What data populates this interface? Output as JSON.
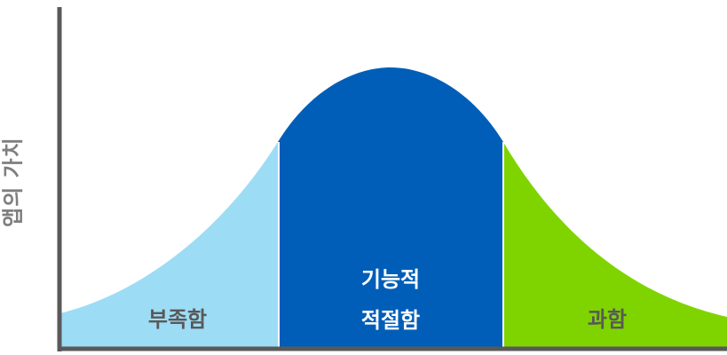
{
  "y_axis_label": "앱의 가치",
  "regions": {
    "deficient": {
      "label": "부족함",
      "color": "#9ddcf5",
      "text_color": "#595959"
    },
    "optimal": {
      "label_line1": "기능적",
      "label_line2": "적절함",
      "color": "#005eb8",
      "text_color": "#ffffff"
    },
    "excessive": {
      "label": "과함",
      "color": "#7fd400",
      "text_color": "#595959"
    }
  },
  "axis_color": "#595959"
}
